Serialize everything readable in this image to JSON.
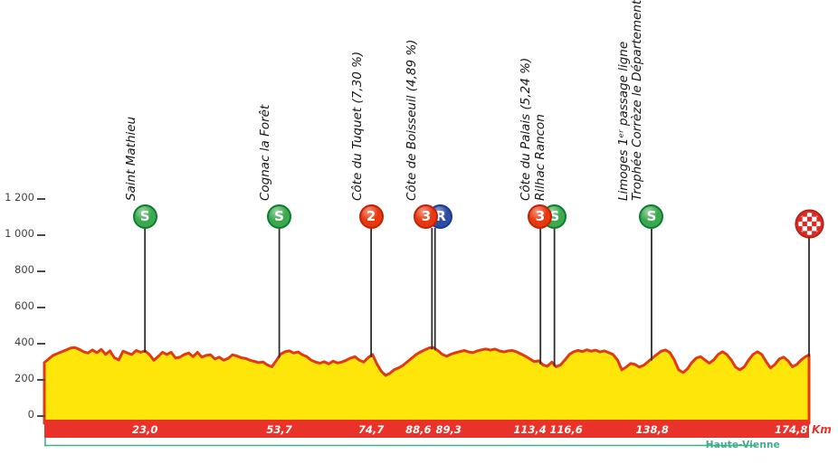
{
  "axis": {
    "unit_label": "Km",
    "elevation_ticks": [
      {
        "value": 1200,
        "label": "1 200"
      },
      {
        "value": 1000,
        "label": "1 000"
      },
      {
        "value": 800,
        "label": "800"
      },
      {
        "value": 600,
        "label": "600"
      },
      {
        "value": 400,
        "label": "400"
      },
      {
        "value": 200,
        "label": "200"
      },
      {
        "value": 0,
        "label": "0"
      }
    ]
  },
  "footer": {
    "department": "Haute-Vienne"
  },
  "colors": {
    "profile_fill": "#FFE60A",
    "profile_stroke": "#E03A0E",
    "distance_bar": "#E8322A",
    "km_text": "#FFFFFF",
    "km_unit_text": "#E8322A",
    "sprint_fill": "#3BAA4F",
    "sprint_border": "#0E7C30",
    "climb_fill": "#E8380F",
    "climb_border": "#BF2206",
    "feed_fill": "#2E4CA3",
    "feed_border": "#1C3A8C",
    "finish_fill": "#DB2A22",
    "finish_border": "#A81D17",
    "marker_line": "#2e2e2e",
    "department_line": "#3FAE8C",
    "department_text": "#3FAE8C",
    "axis_text": "#3f3f3f"
  },
  "chart_data": {
    "type": "area",
    "title": "Stage elevation profile",
    "x_unit": "km",
    "y_unit": "m",
    "x_range": [
      0,
      174.8
    ],
    "y_range": [
      0,
      1200
    ],
    "grid": false,
    "profile": [
      [
        0,
        285
      ],
      [
        1,
        305
      ],
      [
        2,
        325
      ],
      [
        3,
        335
      ],
      [
        4,
        345
      ],
      [
        5,
        355
      ],
      [
        6,
        365
      ],
      [
        7,
        368
      ],
      [
        8,
        358
      ],
      [
        9,
        345
      ],
      [
        10,
        338
      ],
      [
        11,
        355
      ],
      [
        12,
        340
      ],
      [
        13,
        358
      ],
      [
        14,
        330
      ],
      [
        15,
        350
      ],
      [
        16,
        312
      ],
      [
        17,
        300
      ],
      [
        18,
        348
      ],
      [
        19,
        338
      ],
      [
        20,
        330
      ],
      [
        21,
        352
      ],
      [
        22,
        342
      ],
      [
        23,
        350
      ],
      [
        24,
        330
      ],
      [
        25,
        298
      ],
      [
        26,
        318
      ],
      [
        27,
        342
      ],
      [
        28,
        330
      ],
      [
        29,
        342
      ],
      [
        30,
        310
      ],
      [
        31,
        315
      ],
      [
        32,
        330
      ],
      [
        33,
        338
      ],
      [
        34,
        318
      ],
      [
        35,
        342
      ],
      [
        36,
        315
      ],
      [
        37,
        325
      ],
      [
        38,
        328
      ],
      [
        39,
        305
      ],
      [
        40,
        315
      ],
      [
        41,
        298
      ],
      [
        42,
        308
      ],
      [
        43,
        328
      ],
      [
        44,
        322
      ],
      [
        45,
        312
      ],
      [
        46,
        308
      ],
      [
        47,
        298
      ],
      [
        48,
        292
      ],
      [
        49,
        285
      ],
      [
        50,
        288
      ],
      [
        51,
        272
      ],
      [
        52,
        262
      ],
      [
        53,
        295
      ],
      [
        54,
        332
      ],
      [
        55,
        345
      ],
      [
        56,
        350
      ],
      [
        57,
        338
      ],
      [
        58,
        344
      ],
      [
        59,
        328
      ],
      [
        60,
        318
      ],
      [
        61,
        298
      ],
      [
        62,
        288
      ],
      [
        63,
        282
      ],
      [
        64,
        290
      ],
      [
        65,
        278
      ],
      [
        66,
        293
      ],
      [
        67,
        283
      ],
      [
        68,
        288
      ],
      [
        69,
        298
      ],
      [
        70,
        310
      ],
      [
        71,
        318
      ],
      [
        72,
        298
      ],
      [
        73,
        288
      ],
      [
        74,
        312
      ],
      [
        75,
        330
      ],
      [
        76,
        278
      ],
      [
        77,
        238
      ],
      [
        78,
        214
      ],
      [
        79,
        226
      ],
      [
        80,
        246
      ],
      [
        81,
        256
      ],
      [
        82,
        270
      ],
      [
        83,
        290
      ],
      [
        84,
        310
      ],
      [
        85,
        330
      ],
      [
        86,
        344
      ],
      [
        87,
        356
      ],
      [
        88,
        366
      ],
      [
        89,
        368
      ],
      [
        90,
        350
      ],
      [
        91,
        330
      ],
      [
        92,
        320
      ],
      [
        93,
        332
      ],
      [
        94,
        340
      ],
      [
        95,
        346
      ],
      [
        96,
        352
      ],
      [
        97,
        344
      ],
      [
        98,
        340
      ],
      [
        99,
        350
      ],
      [
        100,
        356
      ],
      [
        101,
        360
      ],
      [
        102,
        354
      ],
      [
        103,
        360
      ],
      [
        104,
        350
      ],
      [
        105,
        344
      ],
      [
        106,
        350
      ],
      [
        107,
        352
      ],
      [
        108,
        344
      ],
      [
        109,
        332
      ],
      [
        110,
        320
      ],
      [
        111,
        305
      ],
      [
        112,
        290
      ],
      [
        113,
        295
      ],
      [
        114,
        272
      ],
      [
        115,
        265
      ],
      [
        116,
        288
      ],
      [
        117,
        262
      ],
      [
        118,
        272
      ],
      [
        119,
        300
      ],
      [
        120,
        330
      ],
      [
        121,
        345
      ],
      [
        122,
        352
      ],
      [
        123,
        346
      ],
      [
        124,
        356
      ],
      [
        125,
        348
      ],
      [
        126,
        354
      ],
      [
        127,
        344
      ],
      [
        128,
        350
      ],
      [
        129,
        340
      ],
      [
        130,
        330
      ],
      [
        131,
        300
      ],
      [
        132,
        245
      ],
      [
        133,
        260
      ],
      [
        134,
        280
      ],
      [
        135,
        275
      ],
      [
        136,
        260
      ],
      [
        137,
        270
      ],
      [
        138,
        290
      ],
      [
        139,
        310
      ],
      [
        140,
        330
      ],
      [
        141,
        348
      ],
      [
        142,
        355
      ],
      [
        143,
        340
      ],
      [
        144,
        300
      ],
      [
        145,
        245
      ],
      [
        146,
        230
      ],
      [
        147,
        250
      ],
      [
        148,
        285
      ],
      [
        149,
        310
      ],
      [
        150,
        318
      ],
      [
        151,
        300
      ],
      [
        152,
        282
      ],
      [
        153,
        300
      ],
      [
        154,
        330
      ],
      [
        155,
        345
      ],
      [
        156,
        330
      ],
      [
        157,
        300
      ],
      [
        158,
        260
      ],
      [
        159,
        245
      ],
      [
        160,
        262
      ],
      [
        161,
        300
      ],
      [
        162,
        330
      ],
      [
        163,
        345
      ],
      [
        164,
        330
      ],
      [
        165,
        290
      ],
      [
        166,
        255
      ],
      [
        167,
        275
      ],
      [
        168,
        305
      ],
      [
        169,
        315
      ],
      [
        170,
        295
      ],
      [
        171,
        262
      ],
      [
        172,
        275
      ],
      [
        173,
        300
      ],
      [
        174,
        318
      ],
      [
        174.8,
        328
      ]
    ],
    "waypoints": [
      {
        "km": 23.0,
        "km_label": "23,0",
        "type": "sprint",
        "symbol": "S",
        "name_lines": [
          "Saint Mathieu"
        ]
      },
      {
        "km": 53.7,
        "km_label": "53,7",
        "type": "sprint",
        "symbol": "S",
        "name_lines": [
          "Cognac la Forêt"
        ]
      },
      {
        "km": 74.7,
        "km_label": "74,7",
        "type": "climb-cat-2",
        "symbol": "2",
        "name_lines": [
          "Côte du Tuquet (7,30 %)"
        ]
      },
      {
        "km": 88.6,
        "km_label": "88,6",
        "type": "climb-cat-3",
        "symbol": "3",
        "name_lines": [
          "Côte de Boisseuil (4,89 %)"
        ]
      },
      {
        "km": 89.3,
        "km_label": "89,3",
        "type": "feed-zone",
        "symbol": "R",
        "name_lines": []
      },
      {
        "km": 113.4,
        "km_label": "113,4",
        "type": "climb-cat-3",
        "symbol": "3",
        "name_lines": [
          "Côte du Palais (5,24 %)"
        ]
      },
      {
        "km": 116.6,
        "km_label": "116,6",
        "type": "sprint",
        "symbol": "S",
        "name_lines": [
          "Rilhac Rancon"
        ]
      },
      {
        "km": 138.8,
        "km_label": "138,8",
        "type": "sprint",
        "symbol": "S",
        "name_lines": [
          "Limoges 1ᵉʳ passage ligne",
          "Trophée Corrèze le Département"
        ]
      },
      {
        "km": 174.8,
        "km_label": "174,8",
        "type": "finish",
        "symbol": "checkered-flag",
        "name_lines": []
      }
    ]
  }
}
